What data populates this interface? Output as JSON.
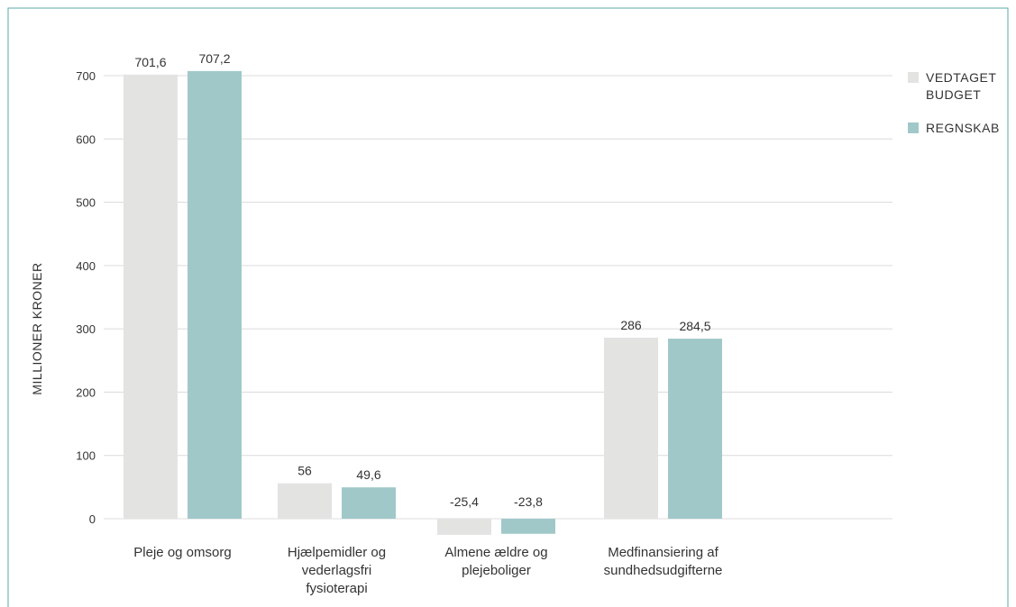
{
  "chart_data": {
    "type": "bar",
    "categories": [
      [
        "Pleje og omsorg"
      ],
      [
        "Hjælpemidler og",
        "vederlagsfri",
        "fysioterapi"
      ],
      [
        "Almene ældre og",
        "plejeboliger"
      ],
      [
        "Medfinansiering af",
        "sundhedsudgifterne"
      ]
    ],
    "series": [
      {
        "name": "VEDTAGET BUDGET",
        "name_lines": [
          "VEDTAGET",
          "BUDGET"
        ],
        "color": "#e3e3e2",
        "values": [
          701.6,
          56,
          -25.4,
          286
        ],
        "labels": [
          "701,6",
          "56",
          "-25,4",
          "286"
        ]
      },
      {
        "name": "REGNSKAB",
        "name_lines": [
          "REGNSKAB"
        ],
        "color": "#a1c8c9",
        "values": [
          707.2,
          49.6,
          -23.8,
          284.5
        ],
        "labels": [
          "707,2",
          "49,6",
          "-23,8",
          "284,5"
        ]
      }
    ],
    "yticks": [
      0,
      100,
      200,
      300,
      400,
      500,
      600,
      700
    ],
    "ytick_labels": [
      "0",
      "100",
      "200",
      "300",
      "400",
      "500",
      "600",
      "700"
    ],
    "ylim": [
      -30,
      710
    ],
    "xlabel": "",
    "ylabel": "MILLIONER KRONER",
    "grid": true,
    "legend_position": "top-right"
  },
  "colors": {
    "frame": "#5aa9a5",
    "grid": "#dcdcdc",
    "text": "#333333"
  }
}
